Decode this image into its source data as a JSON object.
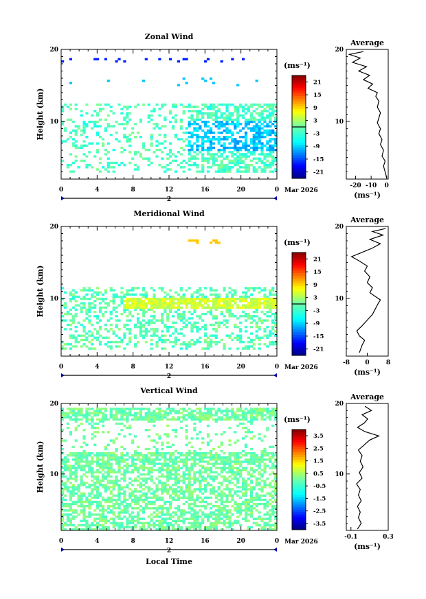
{
  "figure": {
    "x_axis_label": "Local Time",
    "date_label": "Mar 2026",
    "day_label": "2",
    "y_axis_label": "Height (km)",
    "unit_label": "(ms⁻¹)",
    "average_title": "Average"
  },
  "chart_data": [
    {
      "type": "heatmap",
      "title": "Zonal Wind",
      "xlabel": "",
      "ylabel": "Height (km)",
      "xlim": [
        0,
        24
      ],
      "ylim": [
        2,
        20
      ],
      "x_ticks": [
        "0",
        "4",
        "8",
        "12",
        "16",
        "20",
        "0"
      ],
      "y_ticks": [
        "10",
        "20"
      ],
      "colorbar": {
        "unit": "(ms⁻¹)",
        "range": [
          -24,
          24
        ],
        "ticks": [
          "21",
          "15",
          "9",
          "3",
          "-3",
          "-9",
          "-15",
          "-21"
        ]
      },
      "average_profile": {
        "title": "Average",
        "xlabel": "(ms⁻¹)",
        "xlim": [
          -26,
          1
        ],
        "x_ticks": [
          "-20",
          "-10",
          "0"
        ],
        "points": [
          [
            0,
            2.2
          ],
          [
            -1,
            3
          ],
          [
            -2,
            3.8
          ],
          [
            -1,
            4.5
          ],
          [
            -3,
            5.2
          ],
          [
            -2,
            6
          ],
          [
            -4,
            6.8
          ],
          [
            -3,
            7.5
          ],
          [
            -5,
            8.3
          ],
          [
            -4,
            9
          ],
          [
            -6,
            9.8
          ],
          [
            -5,
            10.5
          ],
          [
            -4,
            11.2
          ],
          [
            -6,
            12
          ],
          [
            -5,
            12.8
          ],
          [
            -7,
            13.5
          ],
          [
            -6,
            14
          ],
          [
            -12,
            14.6
          ],
          [
            -9,
            15.2
          ],
          [
            -15,
            15.8
          ],
          [
            -11,
            16.4
          ],
          [
            -18,
            17
          ],
          [
            -13,
            17.6
          ],
          [
            -22,
            18.2
          ],
          [
            -17,
            18.8
          ],
          [
            -24,
            19.3
          ],
          [
            -15,
            19.7
          ]
        ]
      }
    },
    {
      "type": "heatmap",
      "title": "Meridional Wind",
      "xlabel": "",
      "ylabel": "Height (km)",
      "xlim": [
        0,
        24
      ],
      "ylim": [
        2,
        20
      ],
      "x_ticks": [
        "0",
        "4",
        "8",
        "12",
        "16",
        "20",
        "0"
      ],
      "y_ticks": [
        "10",
        "20"
      ],
      "colorbar": {
        "unit": "(ms⁻¹)",
        "range": [
          -24,
          24
        ],
        "ticks": [
          "21",
          "15",
          "9",
          "3",
          "-3",
          "-9",
          "-15",
          "-21"
        ]
      },
      "average_profile": {
        "title": "Average",
        "xlabel": "(ms⁻¹)",
        "xlim": [
          -8,
          8
        ],
        "x_ticks": [
          "-8",
          "0",
          "8"
        ],
        "points": [
          [
            -3,
            2.5
          ],
          [
            -2,
            3.5
          ],
          [
            -1,
            4.2
          ],
          [
            -3,
            4.8
          ],
          [
            -4,
            5.5
          ],
          [
            -2,
            6.2
          ],
          [
            0,
            7
          ],
          [
            2,
            7.8
          ],
          [
            3,
            8.5
          ],
          [
            4,
            9.2
          ],
          [
            5,
            9.8
          ],
          [
            3,
            10.3
          ],
          [
            1,
            10.8
          ],
          [
            2,
            11.5
          ],
          [
            0,
            12.2
          ],
          [
            1,
            13
          ],
          [
            -1,
            13.8
          ],
          [
            0,
            14.5
          ],
          [
            -3,
            15.2
          ],
          [
            -6,
            15.8
          ],
          [
            -2,
            16.4
          ],
          [
            2,
            17
          ],
          [
            5,
            17.6
          ],
          [
            1,
            18.2
          ],
          [
            6,
            18.8
          ],
          [
            2,
            19.3
          ],
          [
            7,
            19.7
          ]
        ]
      }
    },
    {
      "type": "heatmap",
      "title": "Vertical Wind",
      "xlabel": "Local Time",
      "ylabel": "Height (km)",
      "xlim": [
        0,
        24
      ],
      "ylim": [
        2,
        20
      ],
      "x_ticks": [
        "0",
        "4",
        "8",
        "12",
        "16",
        "20",
        "0"
      ],
      "y_ticks": [
        "10",
        "20"
      ],
      "colorbar": {
        "unit": "(ms⁻¹)",
        "range": [
          -4,
          4
        ],
        "ticks": [
          "3.5",
          "2.5",
          "1.5",
          "0.5",
          "-0.5",
          "-1.5",
          "-2.5",
          "-3.5"
        ]
      },
      "average_profile": {
        "title": "Average",
        "xlabel": "(ms⁻¹)",
        "xlim": [
          -0.15,
          0.3
        ],
        "x_ticks": [
          "-0.1",
          "0.3"
        ],
        "points": [
          [
            -0.03,
            2.2
          ],
          [
            0.01,
            3
          ],
          [
            -0.02,
            3.8
          ],
          [
            0.0,
            4.6
          ],
          [
            -0.03,
            5.4
          ],
          [
            0.01,
            6.2
          ],
          [
            -0.02,
            7
          ],
          [
            0.0,
            7.8
          ],
          [
            -0.04,
            8.6
          ],
          [
            0.02,
            9.4
          ],
          [
            -0.01,
            10.2
          ],
          [
            0.03,
            11
          ],
          [
            0.0,
            11.8
          ],
          [
            0.02,
            12.6
          ],
          [
            -0.02,
            13.4
          ],
          [
            0.05,
            14.2
          ],
          [
            0.1,
            14.8
          ],
          [
            0.2,
            15.4
          ],
          [
            0.05,
            16
          ],
          [
            -0.03,
            16.6
          ],
          [
            0.04,
            17.2
          ],
          [
            0.08,
            17.8
          ],
          [
            0.02,
            18.4
          ],
          [
            0.12,
            19
          ],
          [
            0.05,
            19.6
          ]
        ]
      }
    }
  ]
}
